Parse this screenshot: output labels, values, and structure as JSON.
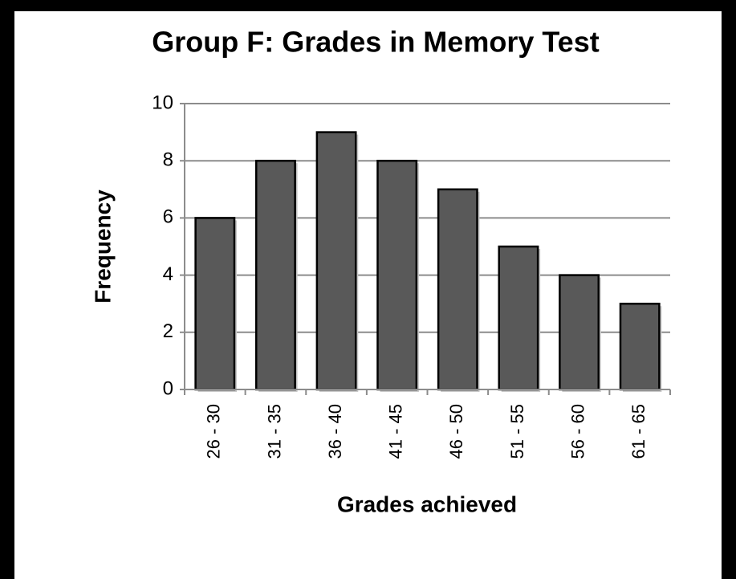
{
  "chart_data": {
    "type": "bar",
    "title": "Group F: Grades in Memory Test",
    "x_label": "Grades achieved",
    "y_label": "Frequency",
    "categories": [
      "26 - 30",
      "31 - 35",
      "36 - 40",
      "41 - 45",
      "46 - 50",
      "51 - 55",
      "56 - 60",
      "61 - 65"
    ],
    "values": [
      6,
      8,
      9,
      8,
      7,
      5,
      4,
      3
    ],
    "color": "#595959",
    "ylim": [
      0,
      10
    ],
    "yticks": [
      0,
      2,
      4,
      6,
      8,
      10
    ],
    "grid": true
  }
}
